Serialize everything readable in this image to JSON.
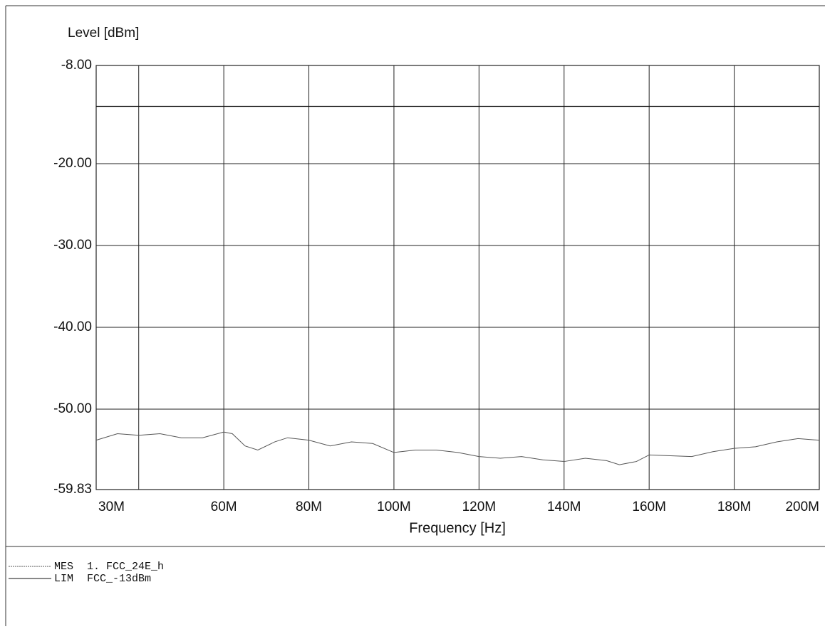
{
  "chart_data": {
    "type": "line",
    "y_label": "Level [dBm]",
    "x_label": "Frequency [Hz]",
    "xlim": [
      30,
      200
    ],
    "ylim": [
      -59.83,
      -8
    ],
    "xticks": [
      {
        "value": 30,
        "label": "30M"
      },
      {
        "value": 40,
        "label": null
      },
      {
        "value": 60,
        "label": "60M"
      },
      {
        "value": 80,
        "label": "80M"
      },
      {
        "value": 100,
        "label": "100M"
      },
      {
        "value": 120,
        "label": "120M"
      },
      {
        "value": 140,
        "label": "140M"
      },
      {
        "value": 160,
        "label": "160M"
      },
      {
        "value": 180,
        "label": "180M"
      },
      {
        "value": 200,
        "label": "200M"
      }
    ],
    "yticks": [
      {
        "value": -8,
        "label": "-8.00"
      },
      {
        "value": -20,
        "label": "-20.00"
      },
      {
        "value": -30,
        "label": "-30.00"
      },
      {
        "value": -40,
        "label": "-40.00"
      },
      {
        "value": -50,
        "label": "-50.00"
      },
      {
        "value": -59.83,
        "label": "-59.83"
      }
    ],
    "grid": true,
    "series": [
      {
        "name": "MES",
        "file": "1. FCC_24E_h",
        "color": "#555555",
        "x": [
          30,
          35,
          40,
          45,
          50,
          55,
          60,
          62,
          65,
          68,
          72,
          75,
          80,
          85,
          90,
          95,
          100,
          105,
          110,
          115,
          120,
          125,
          130,
          135,
          140,
          145,
          150,
          153,
          157,
          160,
          165,
          170,
          175,
          180,
          185,
          190,
          195,
          200
        ],
        "values": [
          -53.8,
          -53,
          -53.2,
          -53,
          -53.5,
          -53.5,
          -52.8,
          -53,
          -54.5,
          -55,
          -54,
          -53.5,
          -53.8,
          -54.5,
          -54,
          -54.2,
          -55.3,
          -55,
          -55,
          -55.3,
          -55.8,
          -56,
          -55.8,
          -56.2,
          -56.4,
          -56,
          -56.3,
          -56.8,
          -56.4,
          -55.6,
          -55.7,
          -55.8,
          -55.2,
          -54.8,
          -54.6,
          -54,
          -53.6,
          -53.8
        ]
      },
      {
        "name": "LIM",
        "file": "FCC_-13dBm",
        "color": "#111111",
        "x": [
          30,
          200
        ],
        "values": [
          -13,
          -13
        ]
      }
    ]
  }
}
